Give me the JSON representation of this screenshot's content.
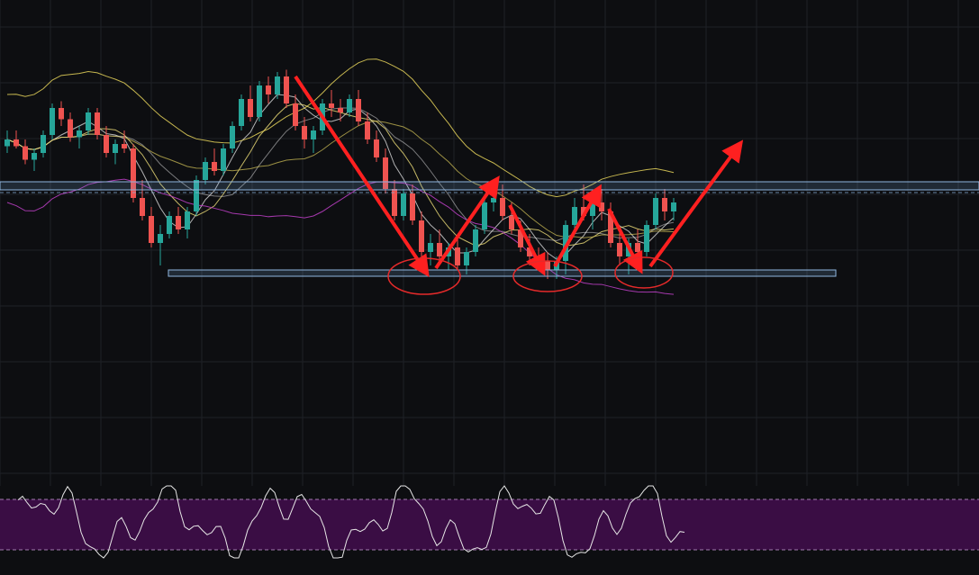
{
  "chart_data": {
    "type": "candlestick",
    "theme": {
      "background": "#0d0e11",
      "grid": "#1f2126",
      "up": "#26a69a",
      "down": "#ef5350"
    },
    "x_range": [
      0,
      120
    ],
    "price_range": [
      0,
      100
    ],
    "candles": [
      [
        0,
        63,
        70,
        60,
        66
      ],
      [
        1,
        66,
        70,
        62,
        63
      ],
      [
        2,
        63,
        66,
        55,
        57
      ],
      [
        3,
        57,
        62,
        52,
        60
      ],
      [
        4,
        60,
        70,
        58,
        68
      ],
      [
        5,
        68,
        82,
        66,
        80
      ],
      [
        6,
        80,
        83,
        72,
        75
      ],
      [
        7,
        75,
        78,
        65,
        67
      ],
      [
        8,
        67,
        72,
        62,
        70
      ],
      [
        9,
        70,
        80,
        68,
        78
      ],
      [
        10,
        78,
        80,
        66,
        68
      ],
      [
        11,
        68,
        72,
        58,
        60
      ],
      [
        12,
        60,
        66,
        55,
        64
      ],
      [
        13,
        64,
        70,
        60,
        62
      ],
      [
        14,
        62,
        64,
        38,
        40
      ],
      [
        15,
        40,
        48,
        30,
        32
      ],
      [
        16,
        32,
        36,
        18,
        20
      ],
      [
        17,
        20,
        28,
        10,
        24
      ],
      [
        18,
        24,
        34,
        22,
        32
      ],
      [
        19,
        32,
        36,
        24,
        26
      ],
      [
        20,
        26,
        36,
        22,
        34
      ],
      [
        21,
        34,
        50,
        32,
        48
      ],
      [
        22,
        48,
        58,
        46,
        56
      ],
      [
        23,
        56,
        62,
        50,
        52
      ],
      [
        24,
        52,
        64,
        50,
        62
      ],
      [
        25,
        62,
        74,
        60,
        72
      ],
      [
        26,
        72,
        86,
        70,
        84
      ],
      [
        27,
        84,
        90,
        74,
        76
      ],
      [
        28,
        76,
        92,
        74,
        90
      ],
      [
        29,
        90,
        94,
        82,
        86
      ],
      [
        30,
        86,
        96,
        84,
        94
      ],
      [
        31,
        94,
        97,
        80,
        82
      ],
      [
        32,
        82,
        86,
        70,
        72
      ],
      [
        33,
        72,
        76,
        62,
        66
      ],
      [
        34,
        66,
        72,
        60,
        70
      ],
      [
        35,
        70,
        84,
        68,
        82
      ],
      [
        36,
        82,
        88,
        76,
        80
      ],
      [
        37,
        80,
        84,
        74,
        78
      ],
      [
        38,
        78,
        86,
        76,
        84
      ],
      [
        39,
        84,
        88,
        72,
        74
      ],
      [
        40,
        74,
        78,
        64,
        66
      ],
      [
        41,
        66,
        70,
        56,
        58
      ],
      [
        42,
        58,
        62,
        42,
        44
      ],
      [
        43,
        44,
        48,
        30,
        32
      ],
      [
        44,
        32,
        44,
        30,
        42
      ],
      [
        45,
        42,
        46,
        28,
        30
      ],
      [
        46,
        30,
        34,
        14,
        16
      ],
      [
        47,
        16,
        24,
        10,
        20
      ],
      [
        48,
        20,
        26,
        12,
        14
      ],
      [
        49,
        14,
        20,
        8,
        18
      ],
      [
        50,
        18,
        22,
        8,
        10
      ],
      [
        51,
        10,
        18,
        6,
        16
      ],
      [
        52,
        16,
        28,
        14,
        26
      ],
      [
        53,
        26,
        40,
        24,
        38
      ],
      [
        54,
        38,
        44,
        34,
        40
      ],
      [
        55,
        40,
        46,
        30,
        32
      ],
      [
        56,
        32,
        38,
        24,
        26
      ],
      [
        57,
        26,
        30,
        16,
        18
      ],
      [
        58,
        18,
        24,
        10,
        14
      ],
      [
        59,
        14,
        18,
        8,
        12
      ],
      [
        60,
        12,
        16,
        4,
        8
      ],
      [
        61,
        8,
        14,
        4,
        12
      ],
      [
        62,
        12,
        30,
        6,
        28
      ],
      [
        63,
        28,
        40,
        24,
        36
      ],
      [
        64,
        36,
        46,
        30,
        32
      ],
      [
        65,
        32,
        40,
        26,
        38
      ],
      [
        66,
        38,
        44,
        30,
        34
      ],
      [
        67,
        34,
        38,
        18,
        20
      ],
      [
        68,
        20,
        26,
        10,
        14
      ],
      [
        69,
        14,
        22,
        6,
        20
      ],
      [
        70,
        20,
        26,
        12,
        16
      ],
      [
        71,
        16,
        30,
        14,
        28
      ],
      [
        72,
        28,
        42,
        26,
        40
      ],
      [
        73,
        40,
        44,
        30,
        34
      ],
      [
        74,
        34,
        40,
        30,
        38
      ]
    ],
    "indicator": {
      "type": "oscillator",
      "panel": "bottom",
      "band_color": "#3a0d44"
    }
  }
}
